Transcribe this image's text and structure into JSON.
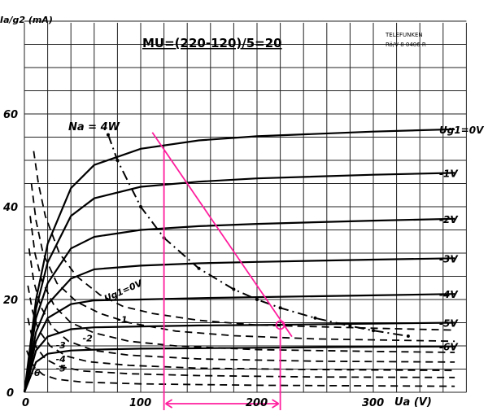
{
  "chart_data": {
    "type": "line",
    "title": "MU=(220-120)/5=20",
    "ylabel": "Ia/g2 (mA)",
    "xlabel": "Ua (V)",
    "xlim": [
      0,
      380
    ],
    "ylim": [
      0,
      80
    ],
    "xticks": [
      0,
      100,
      200,
      300
    ],
    "yticks": [
      0,
      20,
      40,
      60
    ],
    "grid": true,
    "stamp": [
      "TELEFUNKEN",
      "Rö/V 8 0406 R"
    ],
    "power_label": "Na = 4W",
    "solid_series": [
      {
        "name": "Ug1=0V",
        "points": [
          [
            0,
            0
          ],
          [
            10,
            20
          ],
          [
            20,
            32
          ],
          [
            40,
            44
          ],
          [
            60,
            49
          ],
          [
            100,
            52.5
          ],
          [
            150,
            54.3
          ],
          [
            200,
            55.2
          ],
          [
            300,
            56.2
          ],
          [
            370,
            56.7
          ]
        ]
      },
      {
        "name": "-1V",
        "points": [
          [
            0,
            0
          ],
          [
            10,
            18
          ],
          [
            20,
            28
          ],
          [
            40,
            38
          ],
          [
            60,
            41.8
          ],
          [
            100,
            44.3
          ],
          [
            150,
            45.4
          ],
          [
            200,
            46.1
          ],
          [
            300,
            46.9
          ],
          [
            370,
            47.3
          ]
        ]
      },
      {
        "name": "-2V",
        "points": [
          [
            0,
            0
          ],
          [
            10,
            16
          ],
          [
            20,
            23.5
          ],
          [
            40,
            31
          ],
          [
            60,
            33.5
          ],
          [
            100,
            35
          ],
          [
            150,
            35.8
          ],
          [
            200,
            36.3
          ],
          [
            300,
            37
          ],
          [
            370,
            37.4
          ]
        ]
      },
      {
        "name": "-3V",
        "points": [
          [
            0,
            0
          ],
          [
            10,
            13
          ],
          [
            20,
            19
          ],
          [
            40,
            24.5
          ],
          [
            60,
            26.5
          ],
          [
            100,
            27.3
          ],
          [
            150,
            27.8
          ],
          [
            200,
            28.1
          ],
          [
            300,
            28.6
          ],
          [
            370,
            28.9
          ]
        ]
      },
      {
        "name": "-4V",
        "points": [
          [
            0,
            0
          ],
          [
            10,
            11
          ],
          [
            20,
            16
          ],
          [
            40,
            19
          ],
          [
            60,
            19.8
          ],
          [
            100,
            20
          ],
          [
            150,
            20.3
          ],
          [
            200,
            20.5
          ],
          [
            300,
            20.9
          ],
          [
            370,
            21.2
          ]
        ]
      },
      {
        "name": "-5V",
        "points": [
          [
            0,
            0
          ],
          [
            10,
            9
          ],
          [
            20,
            12
          ],
          [
            40,
            13.6
          ],
          [
            60,
            14
          ],
          [
            100,
            14.2
          ],
          [
            150,
            14.4
          ],
          [
            200,
            14.5
          ],
          [
            300,
            14.8
          ],
          [
            370,
            15
          ]
        ]
      },
      {
        "name": "-6V",
        "points": [
          [
            0,
            0
          ],
          [
            10,
            6.5
          ],
          [
            20,
            8.3
          ],
          [
            40,
            9
          ],
          [
            60,
            9.2
          ],
          [
            100,
            9.4
          ],
          [
            150,
            9.5
          ],
          [
            200,
            9.6
          ],
          [
            300,
            9.8
          ],
          [
            370,
            9.9
          ]
        ]
      }
    ],
    "dashed_series": [
      {
        "name": "Ug1=0V",
        "points": [
          [
            8,
            52
          ],
          [
            12,
            45
          ],
          [
            18,
            38
          ],
          [
            30,
            30
          ],
          [
            45,
            25
          ],
          [
            65,
            21
          ],
          [
            85,
            18.5
          ],
          [
            110,
            17
          ],
          [
            150,
            15.5
          ],
          [
            200,
            14.5
          ],
          [
            300,
            13.8
          ],
          [
            370,
            13.4
          ]
        ]
      },
      {
        "name": "-1",
        "points": [
          [
            6,
            45
          ],
          [
            10,
            37
          ],
          [
            16,
            30
          ],
          [
            28,
            23.5
          ],
          [
            45,
            19.5
          ],
          [
            65,
            17
          ],
          [
            90,
            15
          ],
          [
            130,
            13.2
          ],
          [
            180,
            12.2
          ],
          [
            250,
            11.5
          ],
          [
            370,
            11
          ]
        ]
      },
      {
        "name": "-2",
        "points": [
          [
            5,
            38
          ],
          [
            9,
            30
          ],
          [
            15,
            24
          ],
          [
            26,
            18.5
          ],
          [
            40,
            15
          ],
          [
            60,
            12.8
          ],
          [
            90,
            11
          ],
          [
            130,
            10
          ],
          [
            200,
            9.2
          ],
          [
            300,
            8.8
          ],
          [
            370,
            8.6
          ]
        ]
      },
      {
        "name": "-3",
        "points": [
          [
            4,
            31
          ],
          [
            8,
            24
          ],
          [
            14,
            18.5
          ],
          [
            24,
            14
          ],
          [
            38,
            11
          ],
          [
            60,
            9
          ],
          [
            90,
            8
          ],
          [
            150,
            7.2
          ],
          [
            250,
            6.7
          ],
          [
            370,
            6.5
          ]
        ]
      },
      {
        "name": "-4",
        "points": [
          [
            3,
            23
          ],
          [
            7,
            17.5
          ],
          [
            12,
            13.5
          ],
          [
            22,
            10
          ],
          [
            36,
            7.8
          ],
          [
            55,
            6.6
          ],
          [
            90,
            5.8
          ],
          [
            150,
            5.2
          ],
          [
            250,
            4.9
          ],
          [
            370,
            4.7
          ]
        ]
      },
      {
        "name": "-5",
        "points": [
          [
            3,
            16
          ],
          [
            6,
            12.5
          ],
          [
            10,
            9.8
          ],
          [
            18,
            7.2
          ],
          [
            30,
            5.6
          ],
          [
            50,
            4.6
          ],
          [
            90,
            4
          ],
          [
            150,
            3.6
          ],
          [
            250,
            3.3
          ],
          [
            370,
            3.2
          ]
        ]
      },
      {
        "name": "-6",
        "points": [
          [
            2,
            9
          ],
          [
            5,
            7
          ],
          [
            9,
            5.3
          ],
          [
            16,
            3.8
          ],
          [
            28,
            2.8
          ],
          [
            50,
            2.2
          ],
          [
            100,
            1.8
          ],
          [
            200,
            1.5
          ],
          [
            370,
            1.3
          ]
        ]
      }
    ],
    "power_hyperbola_points": [
      [
        72,
        55.5
      ],
      [
        80,
        50
      ],
      [
        100,
        40
      ],
      [
        120,
        33.3
      ],
      [
        150,
        26.7
      ],
      [
        180,
        22.2
      ],
      [
        200,
        20
      ],
      [
        220,
        18.2
      ],
      [
        250,
        16
      ],
      [
        280,
        14.3
      ],
      [
        300,
        13.3
      ],
      [
        330,
        12.1
      ]
    ],
    "load_line": {
      "x": [
        110,
        230
      ],
      "y": [
        56,
        12
      ]
    },
    "operating_point": {
      "x": 220,
      "y": 14.5
    },
    "projection_x": [
      120,
      220
    ],
    "curve_labels": [
      "Ug1=0V",
      "-1V",
      "-2V",
      "-3V",
      "-4V",
      "-5V",
      "-6V"
    ],
    "dashed_labels": [
      "Ug1=0V",
      "-1",
      "-2",
      "-3",
      "-4",
      "-5",
      "-6"
    ],
    "colors": {
      "grid": "#222222",
      "curves": "#000000",
      "annotation": "#ff1e9e"
    }
  }
}
